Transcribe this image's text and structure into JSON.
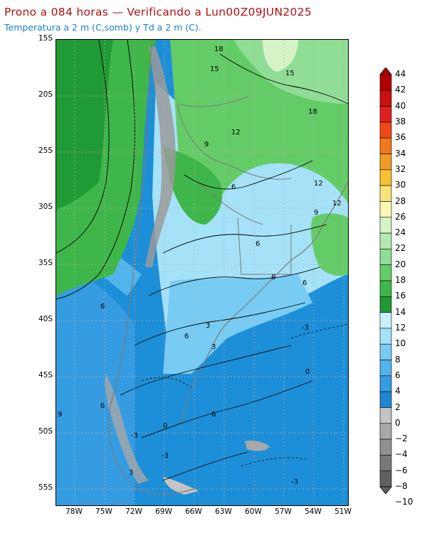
{
  "header": {
    "title": "Prono a 084 horas — Verificando a Lun00Z09JUN2025",
    "subtitle": "Temperatura a 2 m (C,somb) y Td a 2 m (C)."
  },
  "axes": {
    "lat_labels": [
      "15S",
      "20S",
      "25S",
      "30S",
      "35S",
      "40S",
      "45S",
      "50S",
      "55S"
    ],
    "lon_labels": [
      "78W",
      "75W",
      "72W",
      "69W",
      "66W",
      "63W",
      "60W",
      "57W",
      "54W",
      "51W"
    ]
  },
  "colorbar": {
    "levels": [
      "44",
      "42",
      "40",
      "38",
      "36",
      "34",
      "32",
      "30",
      "28",
      "26",
      "24",
      "22",
      "20",
      "18",
      "16",
      "14",
      "12",
      "10",
      "8",
      "6",
      "4",
      "2",
      "0",
      "−2",
      "−4",
      "−6",
      "−8",
      "−10"
    ],
    "colors": [
      "#b00000",
      "#cc1010",
      "#e02020",
      "#f04818",
      "#f07a1a",
      "#f09c22",
      "#f8c030",
      "#f8e27a",
      "#fbf7b4",
      "#d6f3c8",
      "#b4e9b4",
      "#90dd96",
      "#64cc66",
      "#3fb649",
      "#209a34",
      "#c8f0fb",
      "#a5e2f8",
      "#78ccf3",
      "#52b4ec",
      "#359ce2",
      "#1e86d2",
      "#c4c4c4",
      "#a8a8a8",
      "#909090",
      "#787878",
      "#606060"
    ]
  },
  "map": {
    "contour_labels": [
      "18",
      "15",
      "15",
      "18",
      "12",
      "9",
      "6",
      "12",
      "9",
      "12",
      "6",
      "6",
      "6",
      "6",
      "3",
      "6",
      "3",
      "-3",
      "0",
      "6",
      "0",
      "-3",
      "6",
      "9",
      "3",
      "-3",
      "-3"
    ],
    "colors": {
      "ocean": "#1d8fd8",
      "warm_green": "#209a34",
      "mid_green": "#3fb649",
      "light_green": "#64cc66",
      "cyan": "#a5e2f8",
      "light_blue": "#78ccf3",
      "andes_gray": "#9a9a9a"
    }
  }
}
